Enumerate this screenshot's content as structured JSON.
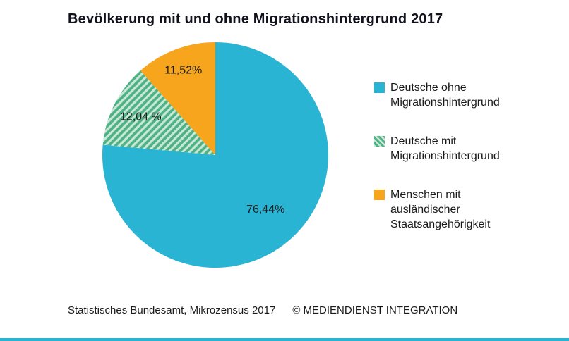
{
  "title": "Bevölkerung mit und ohne Migrationshintergrund 2017",
  "footer": {
    "source": "Statistisches Bundesamt, Mikrozensus 2017",
    "credit": "© MEDIENDIENST INTEGRATION"
  },
  "colors": {
    "accent_bar": "#29b4d3",
    "title_text": "#12121e",
    "body_text": "#1a1a1a"
  },
  "chart_data": {
    "type": "pie",
    "title": "Bevölkerung mit und ohne Migrationshintergrund 2017",
    "unit": "%",
    "total": 100,
    "start_angle_deg": 0,
    "direction": "clockwise",
    "legend_position": "right",
    "slices": [
      {
        "label": "Deutsche ohne Migrationshintergrund",
        "value": 76.44,
        "display": "76,44%",
        "color": "#29b4d3",
        "pattern": "solid",
        "stripe_color": null
      },
      {
        "label": "Deutsche mit Migrationshintergrund",
        "value": 12.04,
        "display": "12,04 %",
        "color": "#4fb285",
        "pattern": "diagonal-stripes",
        "stripe_color": "#c9e8d8"
      },
      {
        "label": "Menschen mit ausländischer Staatsangehörigkeit",
        "value": 11.52,
        "display": "11,52%",
        "color": "#f6a51d",
        "pattern": "solid",
        "stripe_color": null
      }
    ]
  }
}
